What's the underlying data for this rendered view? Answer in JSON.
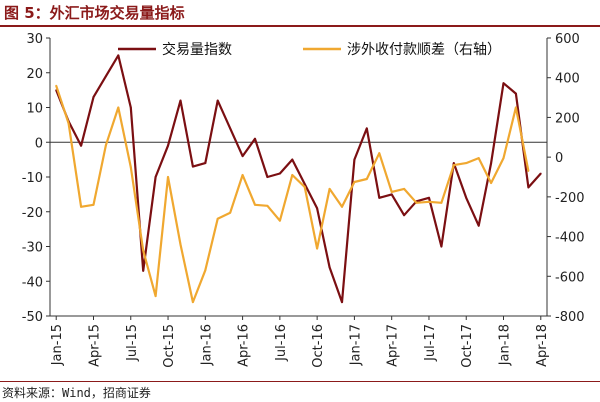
{
  "title": "图 5：外汇市场交易量指标",
  "source": "资料来源：Wind，招商证券",
  "chart_data": {
    "type": "line",
    "x_tick_labels": [
      "Jan-15",
      "Apr-15",
      "Jul-15",
      "Oct-15",
      "Jan-16",
      "Apr-16",
      "Jul-16",
      "Oct-16",
      "Jan-17",
      "Apr-17",
      "Jul-17",
      "Oct-17",
      "Jan-18",
      "Apr-18"
    ],
    "x": [
      "Jan-15",
      "Feb-15",
      "Mar-15",
      "Apr-15",
      "May-15",
      "Jun-15",
      "Jul-15",
      "Aug-15",
      "Sep-15",
      "Oct-15",
      "Nov-15",
      "Dec-15",
      "Jan-16",
      "Feb-16",
      "Mar-16",
      "Apr-16",
      "May-16",
      "Jun-16",
      "Jul-16",
      "Aug-16",
      "Sep-16",
      "Oct-16",
      "Nov-16",
      "Dec-16",
      "Jan-17",
      "Feb-17",
      "Mar-17",
      "Apr-17",
      "May-17",
      "Jun-17",
      "Jul-17",
      "Aug-17",
      "Sep-17",
      "Oct-17",
      "Nov-17",
      "Dec-17",
      "Jan-18",
      "Feb-18",
      "Mar-18",
      "Apr-18"
    ],
    "y_left": {
      "range": [
        -50,
        30
      ],
      "ticks": [
        "30",
        "20",
        "10",
        "0",
        "-10",
        "-20",
        "-30",
        "-40",
        "-50"
      ]
    },
    "y_right": {
      "range": [
        -800,
        600
      ],
      "ticks": [
        "600",
        "400",
        "200",
        "0",
        "-200",
        "-400",
        "-600",
        "-800"
      ]
    },
    "series": [
      {
        "name": "交易量指数",
        "axis": "left",
        "color": "#7B0F12",
        "values": [
          15,
          6,
          -1,
          13,
          19,
          25,
          10,
          -37,
          -10,
          -1,
          12,
          -7,
          -6,
          12,
          4,
          -4,
          1,
          -10,
          -9,
          -5,
          -12,
          -19,
          -36,
          -46,
          -5,
          4,
          -16,
          -15,
          -21,
          -17,
          -16,
          -30,
          -6,
          -16,
          -24,
          -6,
          17,
          14,
          -13,
          -9
        ]
      },
      {
        "name": "涉外收付款顺差（右轴）",
        "axis": "right",
        "color": "#F0A830",
        "values": [
          360,
          170,
          -250,
          -240,
          60,
          250,
          -50,
          -470,
          -700,
          -100,
          -440,
          -730,
          -570,
          -310,
          -280,
          -90,
          -240,
          -245,
          -320,
          -90,
          -150,
          -460,
          -160,
          -250,
          -125,
          -110,
          20,
          -175,
          -160,
          -230,
          -225,
          -230,
          -40,
          -30,
          -5,
          -130,
          -5,
          250,
          -70,
          null
        ]
      }
    ]
  }
}
